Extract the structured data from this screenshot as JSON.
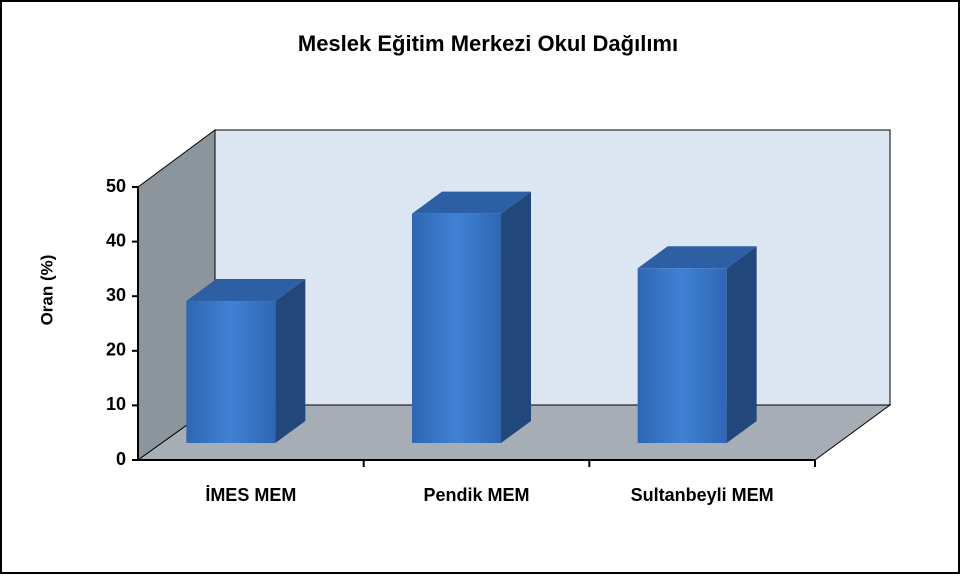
{
  "chart_data": {
    "type": "bar",
    "title": "Meslek Eğitim Merkezi Okul Dağılımı",
    "y_label": "Oran (%)",
    "categories": [
      "İMES MEM",
      "Pendik MEM",
      "Sultanbeyli MEM"
    ],
    "values": [
      26,
      42,
      32
    ],
    "color": "#3a78c8",
    "ylim": [
      0,
      50
    ],
    "yticks": [
      0,
      10,
      20,
      30,
      40,
      50
    ]
  }
}
